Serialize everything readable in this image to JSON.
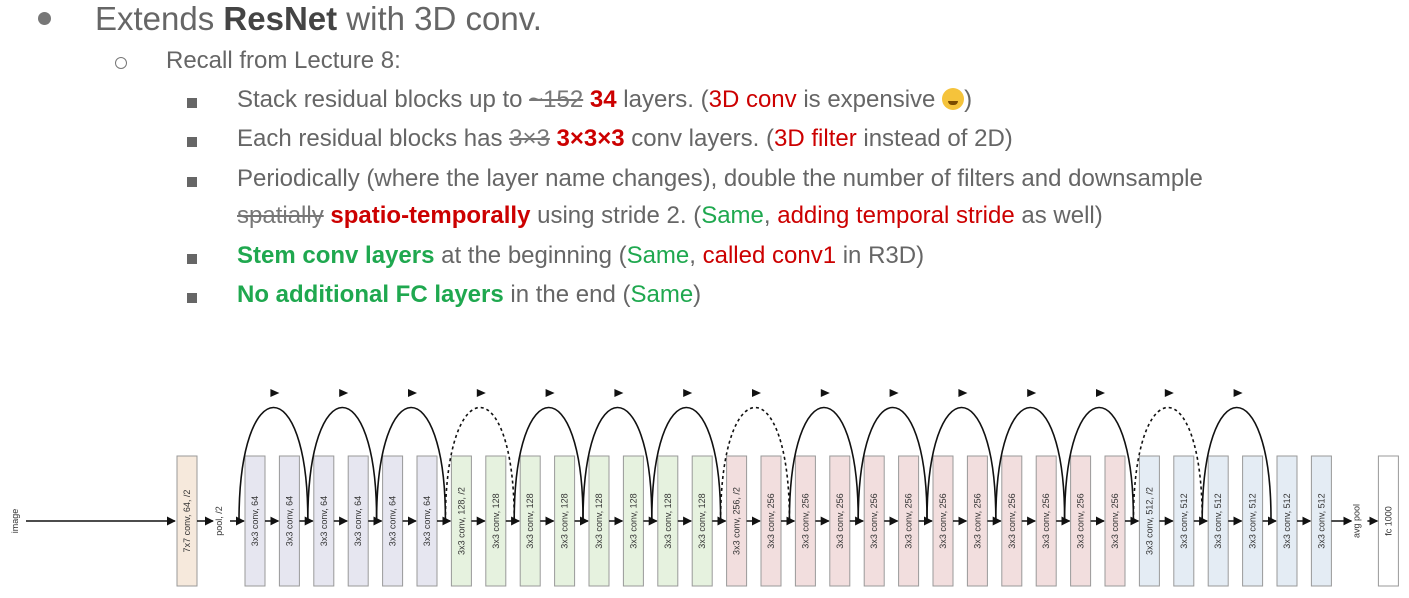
{
  "heading": {
    "pre": "Extends ",
    "bold": "ResNet",
    "post": " with 3D conv."
  },
  "sub": {
    "text": "Recall from Lecture 8:"
  },
  "items": [
    {
      "segs": [
        {
          "t": "Stack residual blocks up to ",
          "c": ""
        },
        {
          "t": "~152",
          "c": "strike"
        },
        {
          "t": " ",
          "c": ""
        },
        {
          "t": "34",
          "c": "redb"
        },
        {
          "t": " layers. (",
          "c": ""
        },
        {
          "t": "3D conv",
          "c": "red"
        },
        {
          "t": " is expensive ",
          "c": ""
        },
        {
          "t": "",
          "c": "emoji"
        },
        {
          "t": ")",
          "c": ""
        }
      ]
    },
    {
      "segs": [
        {
          "t": "Each residual blocks has ",
          "c": ""
        },
        {
          "t": "3×3",
          "c": "strike"
        },
        {
          "t": " ",
          "c": ""
        },
        {
          "t": "3×3×3",
          "c": "redb"
        },
        {
          "t": " conv layers. (",
          "c": ""
        },
        {
          "t": "3D filter",
          "c": "red"
        },
        {
          "t": " instead of 2D)",
          "c": ""
        }
      ]
    },
    {
      "segs": [
        {
          "t": "Periodically (where the layer name changes), double the number of filters and downsample",
          "c": ""
        }
      ]
    },
    {
      "cont": true,
      "segs": [
        {
          "t": "spatially",
          "c": "strike"
        },
        {
          "t": " ",
          "c": ""
        },
        {
          "t": "spatio-temporally",
          "c": "redb"
        },
        {
          "t": " using stride 2. (",
          "c": ""
        },
        {
          "t": "Same",
          "c": "green"
        },
        {
          "t": ", ",
          "c": ""
        },
        {
          "t": "adding temporal stride",
          "c": "red"
        },
        {
          "t": " as well)",
          "c": ""
        }
      ]
    },
    {
      "segs": [
        {
          "t": "Stem conv layers",
          "c": "greenb"
        },
        {
          "t": " at the beginning (",
          "c": ""
        },
        {
          "t": "Same",
          "c": "green"
        },
        {
          "t": ", ",
          "c": ""
        },
        {
          "t": "called conv1",
          "c": "red"
        },
        {
          "t": " in R3D)",
          "c": ""
        }
      ]
    },
    {
      "segs": [
        {
          "t": "No additional FC layers",
          "c": "greenb"
        },
        {
          "t": " in the end (",
          "c": ""
        },
        {
          "t": "Same",
          "c": "green"
        },
        {
          "t": ")",
          "c": ""
        }
      ]
    }
  ],
  "diagram": {
    "input_label": "image",
    "stem": {
      "label": "7x7 conv, 64, /2",
      "fill": "#f6e9dc"
    },
    "pool_label": "pool, /2",
    "layers": [
      {
        "label": "3x3 conv, 64",
        "fill": "#e6e6f0"
      },
      {
        "label": "3x3 conv, 64",
        "fill": "#e6e6f0"
      },
      {
        "label": "3x3 conv, 64",
        "fill": "#e6e6f0"
      },
      {
        "label": "3x3 conv, 64",
        "fill": "#e6e6f0"
      },
      {
        "label": "3x3 conv, 64",
        "fill": "#e6e6f0"
      },
      {
        "label": "3x3 conv, 64",
        "fill": "#e6e6f0"
      },
      {
        "label": "3x3 conv, 128, /2",
        "fill": "#e6f2df"
      },
      {
        "label": "3x3 conv, 128",
        "fill": "#e6f2df"
      },
      {
        "label": "3x3 conv, 128",
        "fill": "#e6f2df"
      },
      {
        "label": "3x3 conv, 128",
        "fill": "#e6f2df"
      },
      {
        "label": "3x3 conv, 128",
        "fill": "#e6f2df"
      },
      {
        "label": "3x3 conv, 128",
        "fill": "#e6f2df"
      },
      {
        "label": "3x3 conv, 128",
        "fill": "#e6f2df"
      },
      {
        "label": "3x3 conv, 128",
        "fill": "#e6f2df"
      },
      {
        "label": "3x3 conv, 256, /2",
        "fill": "#f2dede"
      },
      {
        "label": "3x3 conv, 256",
        "fill": "#f2dede"
      },
      {
        "label": "3x3 conv, 256",
        "fill": "#f2dede"
      },
      {
        "label": "3x3 conv, 256",
        "fill": "#f2dede"
      },
      {
        "label": "3x3 conv, 256",
        "fill": "#f2dede"
      },
      {
        "label": "3x3 conv, 256",
        "fill": "#f2dede"
      },
      {
        "label": "3x3 conv, 256",
        "fill": "#f2dede"
      },
      {
        "label": "3x3 conv, 256",
        "fill": "#f2dede"
      },
      {
        "label": "3x3 conv, 256",
        "fill": "#f2dede"
      },
      {
        "label": "3x3 conv, 256",
        "fill": "#f2dede"
      },
      {
        "label": "3x3 conv, 256",
        "fill": "#f2dede"
      },
      {
        "label": "3x3 conv, 256",
        "fill": "#f2dede"
      },
      {
        "label": "3x3 conv, 512, /2",
        "fill": "#e4ecf4"
      },
      {
        "label": "3x3 conv, 512",
        "fill": "#e4ecf4"
      },
      {
        "label": "3x3 conv, 512",
        "fill": "#e4ecf4"
      },
      {
        "label": "3x3 conv, 512",
        "fill": "#e4ecf4"
      },
      {
        "label": "3x3 conv, 512",
        "fill": "#e4ecf4"
      },
      {
        "label": "3x3 conv, 512",
        "fill": "#e4ecf4"
      }
    ],
    "avgpool_label": "avg pool",
    "fc": {
      "label": "fc 1000",
      "fill": "#ffffff"
    },
    "skips": [
      {
        "dashed": false
      },
      {
        "dashed": false
      },
      {
        "dashed": false
      },
      {
        "dashed": true
      },
      {
        "dashed": false
      },
      {
        "dashed": false
      },
      {
        "dashed": false
      },
      {
        "dashed": true
      },
      {
        "dashed": false
      },
      {
        "dashed": false
      },
      {
        "dashed": false
      },
      {
        "dashed": false
      },
      {
        "dashed": false
      },
      {
        "dashed": true
      },
      {
        "dashed": false
      },
      {
        "dashed": false
      }
    ]
  }
}
